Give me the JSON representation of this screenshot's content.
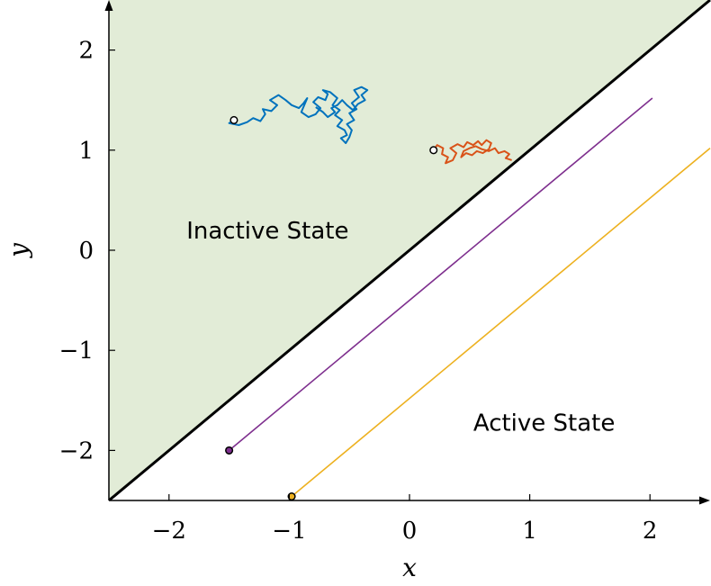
{
  "chart_data": {
    "type": "line",
    "xlabel": "x",
    "ylabel": "y",
    "xlim": [
      -2.5,
      2.5
    ],
    "ylim": [
      -2.5,
      2.5
    ],
    "x_ticks": [
      -2,
      -1,
      0,
      1,
      2
    ],
    "y_ticks": [
      -2,
      -1,
      0,
      1,
      2
    ],
    "tick_labels_x": [
      "−2",
      "−1",
      "0",
      "1",
      "2"
    ],
    "tick_labels_y": [
      "−2",
      "−1",
      "0",
      "1",
      "2"
    ],
    "grid": false,
    "regions": [
      {
        "label": "Inactive State",
        "label_at": [
          -1.18,
          0.2
        ],
        "fill": "#e2ecd7",
        "side": "above y = x"
      },
      {
        "label": "Active State",
        "label_at": [
          1.12,
          -1.72
        ],
        "fill": "#ffffff",
        "side": "below y = x"
      }
    ],
    "boundary": {
      "points": [
        [
          -2.5,
          -2.5
        ],
        [
          2.5,
          2.5
        ]
      ],
      "color": "#000000"
    },
    "series": [
      {
        "kind": "line",
        "color": "#7e2f8e",
        "points": [
          [
            -1.5,
            -2.0
          ],
          [
            2.02,
            1.52
          ]
        ],
        "start_marker": [
          -1.5,
          -2.0
        ]
      },
      {
        "kind": "line",
        "color": "#edb120",
        "points": [
          [
            -0.98,
            -2.46
          ],
          [
            2.5,
            1.02
          ]
        ],
        "start_marker": [
          -0.98,
          -2.46
        ]
      },
      {
        "kind": "random_walk",
        "color": "#0072bd",
        "start": [
          -1.46,
          1.3
        ],
        "points": [
          [
            -1.46,
            1.3
          ],
          [
            -1.5,
            1.27
          ],
          [
            -1.42,
            1.25
          ],
          [
            -1.35,
            1.28
          ],
          [
            -1.3,
            1.32
          ],
          [
            -1.24,
            1.29
          ],
          [
            -1.2,
            1.36
          ],
          [
            -1.22,
            1.41
          ],
          [
            -1.15,
            1.39
          ],
          [
            -1.1,
            1.45
          ],
          [
            -1.16,
            1.5
          ],
          [
            -1.09,
            1.55
          ],
          [
            -1.03,
            1.5
          ],
          [
            -0.98,
            1.45
          ],
          [
            -0.92,
            1.42
          ],
          [
            -0.88,
            1.47
          ],
          [
            -0.85,
            1.52
          ],
          [
            -0.9,
            1.38
          ],
          [
            -0.84,
            1.33
          ],
          [
            -0.78,
            1.36
          ],
          [
            -0.74,
            1.42
          ],
          [
            -0.8,
            1.48
          ],
          [
            -0.76,
            1.53
          ],
          [
            -0.7,
            1.5
          ],
          [
            -0.68,
            1.56
          ],
          [
            -0.72,
            1.6
          ],
          [
            -0.66,
            1.58
          ],
          [
            -0.6,
            1.52
          ],
          [
            -0.64,
            1.45
          ],
          [
            -0.58,
            1.4
          ],
          [
            -0.62,
            1.35
          ],
          [
            -0.56,
            1.3
          ],
          [
            -0.6,
            1.24
          ],
          [
            -0.54,
            1.2
          ],
          [
            -0.52,
            1.15
          ],
          [
            -0.57,
            1.12
          ],
          [
            -0.53,
            1.07
          ],
          [
            -0.5,
            1.13
          ],
          [
            -0.48,
            1.2
          ],
          [
            -0.52,
            1.26
          ],
          [
            -0.46,
            1.3
          ],
          [
            -0.5,
            1.37
          ],
          [
            -0.44,
            1.41
          ],
          [
            -0.48,
            1.47
          ],
          [
            -0.42,
            1.53
          ],
          [
            -0.46,
            1.6
          ],
          [
            -0.4,
            1.63
          ],
          [
            -0.35,
            1.6
          ],
          [
            -0.4,
            1.55
          ],
          [
            -0.37,
            1.5
          ],
          [
            -0.43,
            1.46
          ],
          [
            -0.47,
            1.4
          ],
          [
            -0.52,
            1.45
          ],
          [
            -0.56,
            1.5
          ],
          [
            -0.6,
            1.45
          ],
          [
            -0.65,
            1.42
          ],
          [
            -0.62,
            1.38
          ],
          [
            -0.68,
            1.33
          ],
          [
            -0.72,
            1.38
          ],
          [
            -0.78,
            1.43
          ]
        ]
      },
      {
        "kind": "random_walk",
        "color": "#d95319",
        "start": [
          0.2,
          1.0
        ],
        "points": [
          [
            0.2,
            1.0
          ],
          [
            0.23,
            1.05
          ],
          [
            0.28,
            1.02
          ],
          [
            0.27,
            0.96
          ],
          [
            0.32,
            0.93
          ],
          [
            0.3,
            0.87
          ],
          [
            0.36,
            0.9
          ],
          [
            0.39,
            0.97
          ],
          [
            0.34,
            1.02
          ],
          [
            0.4,
            1.06
          ],
          [
            0.45,
            1.03
          ],
          [
            0.48,
            1.08
          ],
          [
            0.53,
            1.05
          ],
          [
            0.57,
            1.09
          ],
          [
            0.6,
            1.05
          ],
          [
            0.64,
            1.1
          ],
          [
            0.68,
            1.07
          ],
          [
            0.66,
            1.01
          ],
          [
            0.61,
            0.97
          ],
          [
            0.56,
            0.99
          ],
          [
            0.52,
            0.95
          ],
          [
            0.47,
            0.97
          ],
          [
            0.43,
            0.93
          ],
          [
            0.45,
            0.99
          ],
          [
            0.5,
            1.02
          ],
          [
            0.55,
            1.04
          ],
          [
            0.6,
            1.01
          ],
          [
            0.66,
            0.99
          ],
          [
            0.71,
            1.02
          ],
          [
            0.74,
            0.97
          ],
          [
            0.79,
            0.99
          ],
          [
            0.83,
            0.96
          ],
          [
            0.8,
            0.92
          ],
          [
            0.85,
            0.9
          ]
        ]
      }
    ],
    "annotations": [
      "Inactive State",
      "Active State"
    ]
  }
}
